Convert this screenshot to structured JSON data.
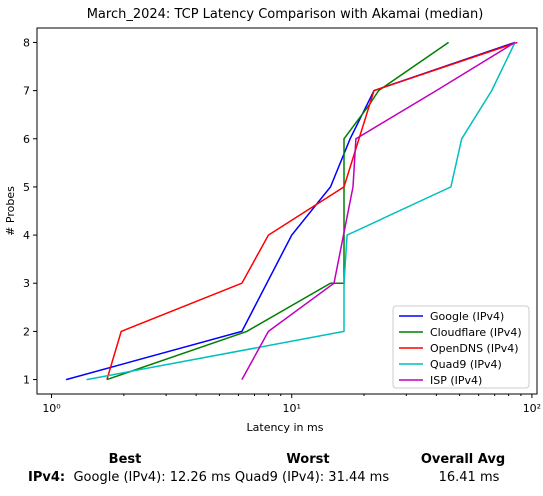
{
  "chart_data": {
    "type": "line",
    "title": "March_2024: TCP Latency Comparison with Akamai (median)",
    "xlabel": "Latency in ms",
    "ylabel": "# Probes",
    "xscale": "log",
    "xlim": [
      0.87,
      105
    ],
    "ylim": [
      0.7,
      8.3
    ],
    "xticks": [
      {
        "v": 1,
        "label": "10⁰"
      },
      {
        "v": 10,
        "label": "10¹"
      },
      {
        "v": 100,
        "label": "10²"
      }
    ],
    "yticks": [
      1,
      2,
      3,
      4,
      5,
      6,
      7,
      8
    ],
    "legend": "bottom-right",
    "series": [
      {
        "name": "Google (IPv4)",
        "color": "#0000ff",
        "points": [
          [
            1.15,
            1
          ],
          [
            6.2,
            2
          ],
          [
            10,
            4
          ],
          [
            14.5,
            5
          ],
          [
            17.5,
            6
          ],
          [
            22,
            7
          ],
          [
            85,
            8
          ]
        ]
      },
      {
        "name": "Cloudflare (IPv4)",
        "color": "#008000",
        "points": [
          [
            1.7,
            1
          ],
          [
            6.5,
            2
          ],
          [
            14.5,
            3
          ],
          [
            16.5,
            3
          ],
          [
            16.5,
            6
          ],
          [
            21,
            6.7
          ],
          [
            23,
            7
          ],
          [
            45,
            8
          ]
        ]
      },
      {
        "name": "OpenDNS (IPv4)",
        "color": "#ff0000",
        "points": [
          [
            1.7,
            1
          ],
          [
            1.95,
            2
          ],
          [
            6.2,
            3
          ],
          [
            8,
            4
          ],
          [
            16.5,
            5
          ],
          [
            22,
            7
          ],
          [
            87,
            8
          ]
        ]
      },
      {
        "name": "Quad9 (IPv4)",
        "color": "#00bfbf",
        "points": [
          [
            1.4,
            1
          ],
          [
            16.5,
            2
          ],
          [
            16.5,
            3
          ],
          [
            17,
            4
          ],
          [
            46,
            5
          ],
          [
            51,
            6
          ],
          [
            68,
            7
          ],
          [
            85,
            8
          ]
        ]
      },
      {
        "name": "ISP (IPv4)",
        "color": "#bf00bf",
        "points": [
          [
            6.2,
            1
          ],
          [
            8,
            2
          ],
          [
            15,
            3
          ],
          [
            18,
            5
          ],
          [
            18.5,
            6
          ],
          [
            40,
            7
          ],
          [
            85,
            8
          ]
        ]
      }
    ]
  },
  "summary": {
    "headers": {
      "best": "Best",
      "worst": "Worst",
      "avg": "Overall Avg"
    },
    "rows": [
      {
        "protocol": "IPv4:",
        "best": "Google (IPv4): 12.26 ms",
        "worst": "Quad9 (IPv4): 31.44 ms",
        "avg": "16.41 ms"
      }
    ]
  }
}
